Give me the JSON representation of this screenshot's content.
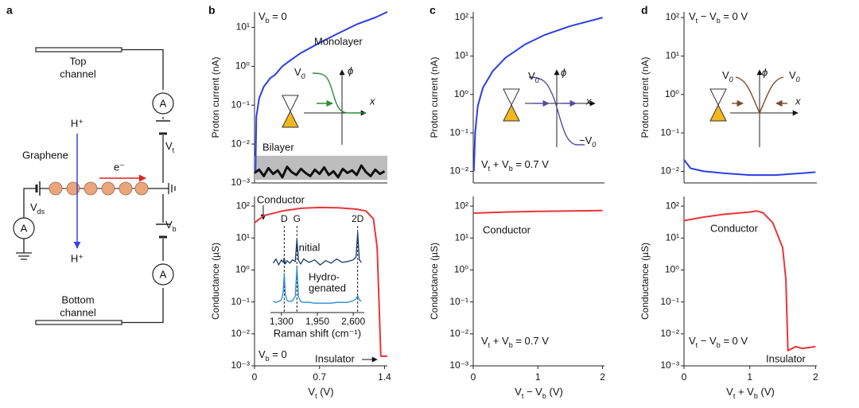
{
  "panel_labels": [
    "a",
    "b",
    "c",
    "d"
  ],
  "panel_a": {
    "top_channel": [
      "Top",
      "channel"
    ],
    "bottom_channel": [
      "Bottom",
      "channel"
    ],
    "meter": "A",
    "proton_in": "H⁺",
    "proton_out": "H⁺",
    "graphene": "Graphene",
    "electron": "e⁻",
    "vt": [
      "V",
      "t"
    ],
    "vb": [
      "V",
      "b"
    ],
    "vds": [
      "V",
      "ds"
    ]
  },
  "insets": [
    {
      "labels": [
        [
          "V",
          "0"
        ],
        "ϕ",
        "x"
      ]
    },
    {
      "labels": [
        [
          "V",
          "0"
        ],
        "ϕ",
        "x",
        [
          "−V",
          "0"
        ]
      ]
    },
    {
      "labels": [
        [
          "V",
          "0"
        ],
        "ϕ",
        [
          "V",
          "0"
        ],
        "x"
      ]
    }
  ],
  "chart_data": [
    {
      "type": "line",
      "yscale": "log",
      "ylabel": "Proton current (nA)",
      "xlim": [
        0,
        1.43
      ],
      "ylim": [
        0.001,
        25
      ],
      "yticks": [
        {
          "value": 0.001,
          "label": "10⁻³"
        },
        {
          "value": 0.01,
          "label": "10⁻²"
        },
        {
          "value": 0.1,
          "label": "10⁻¹"
        },
        {
          "value": 1,
          "label": "10⁰"
        },
        {
          "value": 10,
          "label": "10¹"
        }
      ],
      "band": {
        "low": 0.0012,
        "high": 0.005,
        "color": "#bdbdbd"
      },
      "annotations": [
        [
          "V",
          "b",
          " = 0"
        ]
      ],
      "series": [
        {
          "name": "Monolayer",
          "color": "#2b3fe6",
          "x": [
            0.01,
            0.02,
            0.05,
            0.1,
            0.17,
            0.22,
            0.3,
            0.4,
            0.5,
            0.7,
            0.9,
            1.1,
            1.3,
            1.43
          ],
          "values": [
            0.002,
            0.05,
            0.15,
            0.3,
            0.5,
            0.6,
            1.0,
            1.5,
            2.2,
            4,
            7,
            12,
            18,
            25
          ]
        },
        {
          "name": "Bilayer",
          "color": "#111111",
          "x": [
            0,
            0.05,
            0.1,
            0.15,
            0.2,
            0.25,
            0.3,
            0.35,
            0.4,
            0.45,
            0.5,
            0.55,
            0.6,
            0.65,
            0.7,
            0.75,
            0.8,
            0.85,
            0.9,
            0.95,
            1.0,
            1.05,
            1.1,
            1.15,
            1.2,
            1.25,
            1.3,
            1.35,
            1.4
          ],
          "values": [
            0.0018,
            0.0022,
            0.0015,
            0.0024,
            0.0017,
            0.0021,
            0.0014,
            0.0026,
            0.0019,
            0.0016,
            0.0023,
            0.0018,
            0.0015,
            0.0022,
            0.0017,
            0.0025,
            0.0016,
            0.002,
            0.0014,
            0.0023,
            0.0018,
            0.0021,
            0.0016,
            0.0028,
            0.0019,
            0.0015,
            0.0022,
            0.0017,
            0.002
          ]
        }
      ]
    },
    {
      "type": "line",
      "yscale": "log",
      "ylabel": "Conductance (µS)",
      "xlabel": [
        "V",
        "t",
        " (V)"
      ],
      "xlim": [
        0,
        1.43
      ],
      "ylim": [
        0.001,
        200
      ],
      "xticks": [
        0,
        0.7,
        1.4
      ],
      "yticks": [
        {
          "value": 0.001,
          "label": "10⁻³"
        },
        {
          "value": 0.01,
          "label": "10⁻²"
        },
        {
          "value": 0.1,
          "label": "10⁻¹"
        },
        {
          "value": 1,
          "label": "10⁰"
        },
        {
          "value": 10,
          "label": "10¹"
        },
        {
          "value": 100,
          "label": "10²"
        }
      ],
      "annotations": [
        "Conductor",
        "Insulator",
        [
          "V",
          "b",
          " = 0"
        ]
      ],
      "series": [
        {
          "color": "#e8353a",
          "x": [
            0,
            0.1,
            0.3,
            0.5,
            0.7,
            0.9,
            1.1,
            1.2,
            1.28,
            1.32,
            1.34,
            1.36,
            1.43
          ],
          "values": [
            30,
            50,
            70,
            85,
            90,
            88,
            80,
            70,
            40,
            5,
            0.1,
            0.002,
            0.002
          ]
        }
      ]
    },
    {
      "type": "line",
      "yscale": "linear",
      "xlabel": "Raman shift (cm⁻¹)",
      "xlim": [
        1100,
        2800
      ],
      "ylim": [
        0,
        10
      ],
      "xticks": [
        {
          "value": 1300,
          "label": "1,300"
        },
        {
          "value": 1950,
          "label": "1,950"
        },
        {
          "value": 2600,
          "label": "2,600"
        }
      ],
      "peaks": [
        {
          "label": "D",
          "x": 1350
        },
        {
          "label": "G",
          "x": 1580
        },
        {
          "label": "2D",
          "x": 2680
        }
      ],
      "annotations": [
        "Initial",
        "Hydro-",
        "genated"
      ],
      "series": [
        {
          "color": "#1a3a6b",
          "x": [
            1150,
            1200,
            1250,
            1300,
            1330,
            1350,
            1370,
            1400,
            1450,
            1500,
            1550,
            1580,
            1610,
            1650,
            1700,
            1800,
            1900,
            2000,
            2100,
            2200,
            2300,
            2400,
            2500,
            2600,
            2650,
            2680,
            2710,
            2750
          ],
          "values": [
            5.8,
            6.3,
            5.6,
            6.2,
            5.9,
            6.4,
            5.7,
            6.1,
            5.8,
            6.2,
            6.0,
            8.6,
            6.1,
            5.7,
            6.3,
            5.9,
            6.2,
            5.6,
            6.1,
            5.8,
            6.3,
            5.9,
            6.0,
            6.2,
            6.5,
            9.4,
            6.2,
            5.9
          ]
        },
        {
          "color": "#2a8ad8",
          "x": [
            1150,
            1200,
            1250,
            1300,
            1330,
            1350,
            1370,
            1400,
            1450,
            1500,
            1550,
            1580,
            1610,
            1650,
            1700,
            1800,
            1900,
            2000,
            2100,
            2200,
            2300,
            2400,
            2500,
            2600,
            2650,
            2680,
            2710,
            2750
          ],
          "values": [
            1.3,
            1.2,
            1.3,
            1.5,
            2.4,
            4.6,
            2.2,
            1.4,
            1.3,
            1.4,
            1.9,
            5.3,
            1.8,
            1.3,
            1.2,
            1.2,
            1.1,
            1.1,
            1.1,
            1.1,
            1.2,
            1.2,
            1.2,
            1.4,
            1.6,
            2.0,
            1.5,
            1.3
          ]
        }
      ]
    },
    {
      "type": "line",
      "yscale": "log",
      "ylabel": "Proton current (nA)",
      "xlim": [
        0,
        2.03
      ],
      "ylim": [
        0.005,
        140
      ],
      "yticks": [
        {
          "value": 0.01,
          "label": "10⁻²"
        },
        {
          "value": 0.1,
          "label": "10⁻¹"
        },
        {
          "value": 1,
          "label": "10⁰"
        },
        {
          "value": 10,
          "label": "10¹"
        },
        {
          "value": 100,
          "label": "10²"
        }
      ],
      "annotations": [
        [
          "V",
          "t",
          " + V",
          "b",
          " = 0.7 V"
        ]
      ],
      "series": [
        {
          "color": "#2b3fe6",
          "x": [
            0.01,
            0.03,
            0.07,
            0.15,
            0.3,
            0.5,
            0.8,
            1.1,
            1.5,
            2.0
          ],
          "values": [
            0.01,
            0.1,
            0.5,
            1.5,
            4,
            9,
            20,
            35,
            60,
            100
          ]
        }
      ]
    },
    {
      "type": "line",
      "yscale": "log",
      "ylabel": "Conductance (µS)",
      "xlabel": [
        "V",
        "t",
        " − V",
        "b",
        " (V)"
      ],
      "xlim": [
        0,
        2.03
      ],
      "ylim": [
        0.001,
        200
      ],
      "xticks": [
        0,
        1,
        2
      ],
      "yticks": [
        {
          "value": 0.001,
          "label": "10⁻³"
        },
        {
          "value": 0.01,
          "label": "10⁻²"
        },
        {
          "value": 0.1,
          "label": "10⁻¹"
        },
        {
          "value": 1,
          "label": "10⁰"
        },
        {
          "value": 10,
          "label": "10¹"
        },
        {
          "value": 100,
          "label": "10²"
        }
      ],
      "annotations": [
        "Conductor",
        [
          "V",
          "t",
          " + V",
          "b",
          " = 0.7 V"
        ]
      ],
      "series": [
        {
          "color": "#e8353a",
          "x": [
            0,
            0.5,
            1,
            1.5,
            2
          ],
          "values": [
            60,
            65,
            68,
            70,
            72
          ]
        }
      ]
    },
    {
      "type": "line",
      "yscale": "log",
      "ylabel": "Proton current (nA)",
      "xlim": [
        0,
        2.02
      ],
      "ylim": [
        0.005,
        140
      ],
      "yticks": [
        {
          "value": 0.01,
          "label": "10⁻²"
        },
        {
          "value": 0.1,
          "label": "10⁻¹"
        },
        {
          "value": 1,
          "label": "10⁰"
        },
        {
          "value": 10,
          "label": "10¹"
        },
        {
          "value": 100,
          "label": "10²"
        }
      ],
      "annotations": [
        [
          "V",
          "t",
          " − V",
          "b",
          " = 0 V"
        ]
      ],
      "series": [
        {
          "color": "#2b3fe6",
          "x": [
            0,
            0.1,
            0.3,
            0.6,
            1,
            1.4,
            1.6,
            1.8,
            2.0
          ],
          "values": [
            0.02,
            0.012,
            0.01,
            0.009,
            0.008,
            0.008,
            0.0085,
            0.009,
            0.0095
          ]
        }
      ]
    },
    {
      "type": "line",
      "yscale": "log",
      "ylabel": "Conductance (µS)",
      "xlabel": [
        "V",
        "t",
        " + V",
        "b",
        " (V)"
      ],
      "xlim": [
        0,
        2.02
      ],
      "ylim": [
        0.001,
        200
      ],
      "xticks": [
        0,
        1,
        2
      ],
      "yticks": [
        {
          "value": 0.001,
          "label": "10⁻³"
        },
        {
          "value": 0.01,
          "label": "10⁻²"
        },
        {
          "value": 0.1,
          "label": "10⁻¹"
        },
        {
          "value": 1,
          "label": "10⁰"
        },
        {
          "value": 10,
          "label": "10¹"
        },
        {
          "value": 100,
          "label": "10²"
        }
      ],
      "annotations": [
        "Conductor",
        "Insulator",
        [
          "V",
          "t",
          " − V",
          "b",
          " = 0 V"
        ]
      ],
      "series": [
        {
          "color": "#e8353a",
          "x": [
            0,
            0.3,
            0.6,
            1.0,
            1.1,
            1.2,
            1.35,
            1.5,
            1.55,
            1.58,
            1.7,
            1.8,
            2.0
          ],
          "values": [
            35,
            45,
            55,
            65,
            70,
            62,
            30,
            5,
            0.5,
            0.003,
            0.004,
            0.0035,
            0.004
          ]
        }
      ]
    }
  ]
}
